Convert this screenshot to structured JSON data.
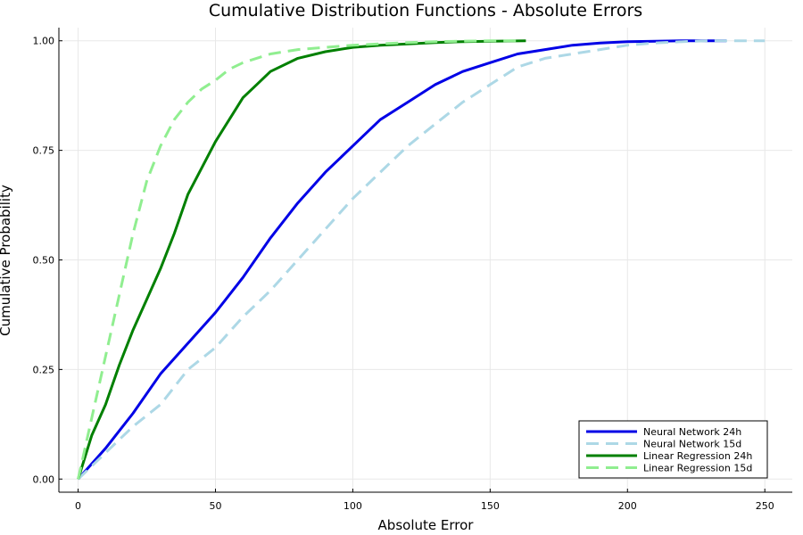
{
  "chart_data": {
    "type": "line",
    "title": "Cumulative Distribution Functions - Absolute Errors",
    "xlabel": "Absolute Error",
    "ylabel": "Cumulative Probability",
    "xlim": [
      -7,
      260
    ],
    "ylim": [
      -0.03,
      1.03
    ],
    "x_ticks": [
      0,
      50,
      100,
      150,
      200,
      250
    ],
    "x_tick_labels": [
      "0",
      "50",
      "100",
      "150",
      "200",
      "250"
    ],
    "y_ticks": [
      0,
      0.25,
      0.5,
      0.75,
      1.0
    ],
    "y_tick_labels": [
      "0.00",
      "0.25",
      "0.50",
      "0.75",
      "1.00"
    ],
    "grid": true,
    "legend_position": "bottom-right",
    "series": [
      {
        "name": "Neural Network 24h",
        "color": "#0000e6",
        "dash": "solid",
        "x": [
          0,
          10,
          20,
          30,
          40,
          50,
          60,
          70,
          80,
          90,
          100,
          110,
          120,
          130,
          140,
          150,
          160,
          170,
          180,
          190,
          200,
          210,
          220,
          236
        ],
        "y": [
          0,
          0.07,
          0.15,
          0.24,
          0.31,
          0.38,
          0.46,
          0.55,
          0.63,
          0.7,
          0.76,
          0.82,
          0.86,
          0.9,
          0.93,
          0.95,
          0.97,
          0.98,
          0.99,
          0.995,
          0.998,
          0.999,
          1.0,
          1.0
        ]
      },
      {
        "name": "Neural Network 15d",
        "color": "#add8e6",
        "dash": "dashed",
        "x": [
          0,
          10,
          20,
          30,
          40,
          50,
          60,
          70,
          80,
          90,
          100,
          110,
          120,
          130,
          140,
          150,
          160,
          170,
          180,
          190,
          200,
          210,
          220,
          230,
          250
        ],
        "y": [
          0,
          0.06,
          0.12,
          0.17,
          0.25,
          0.3,
          0.37,
          0.43,
          0.5,
          0.57,
          0.64,
          0.7,
          0.76,
          0.81,
          0.86,
          0.9,
          0.94,
          0.96,
          0.97,
          0.98,
          0.99,
          0.995,
          0.998,
          1.0,
          1.0
        ]
      },
      {
        "name": "Linear Regression 24h",
        "color": "#008000",
        "dash": "solid",
        "x": [
          0,
          5,
          10,
          15,
          20,
          25,
          30,
          35,
          40,
          45,
          50,
          55,
          60,
          65,
          70,
          80,
          90,
          100,
          110,
          120,
          130,
          140,
          150,
          163
        ],
        "y": [
          0,
          0.1,
          0.17,
          0.26,
          0.34,
          0.41,
          0.48,
          0.56,
          0.65,
          0.71,
          0.77,
          0.82,
          0.87,
          0.9,
          0.93,
          0.96,
          0.975,
          0.985,
          0.99,
          0.993,
          0.996,
          0.998,
          0.999,
          1.0
        ]
      },
      {
        "name": "Linear Regression 15d",
        "color": "#90ee90",
        "dash": "dashed",
        "x": [
          0,
          5,
          10,
          15,
          20,
          25,
          30,
          35,
          40,
          45,
          50,
          55,
          60,
          70,
          80,
          90,
          100,
          110,
          120,
          130,
          140,
          150,
          160
        ],
        "y": [
          0,
          0.14,
          0.28,
          0.42,
          0.56,
          0.68,
          0.76,
          0.82,
          0.86,
          0.89,
          0.91,
          0.935,
          0.95,
          0.97,
          0.98,
          0.985,
          0.99,
          0.993,
          0.996,
          0.998,
          0.999,
          1.0,
          1.0
        ]
      }
    ]
  }
}
